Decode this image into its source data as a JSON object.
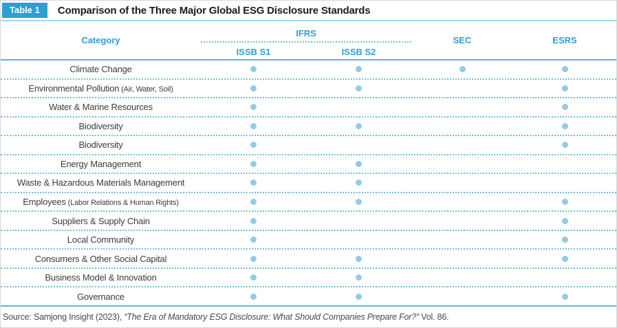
{
  "header": {
    "badge": "Table 1",
    "title": "Comparison of the Three Major Global ESG Disclosure Standards"
  },
  "table": {
    "category_header": "Category",
    "group_header": "IFRS",
    "columns": [
      "ISSB S1",
      "ISSB S2",
      "SEC",
      "ESRS"
    ],
    "rows": [
      {
        "label": "Climate Change",
        "note": "",
        "marks": [
          1,
          1,
          1,
          1
        ]
      },
      {
        "label": "Environmental Pollution",
        "note": "(Air, Water, Soil)",
        "marks": [
          1,
          1,
          0,
          1
        ]
      },
      {
        "label": "Water & Marine Resources",
        "note": "",
        "marks": [
          1,
          0,
          0,
          1
        ]
      },
      {
        "label": "Biodiversity",
        "note": "",
        "marks": [
          1,
          1,
          0,
          1
        ]
      },
      {
        "label": "Biodiversity",
        "note": "",
        "marks": [
          1,
          0,
          0,
          1
        ]
      },
      {
        "label": "Energy Management",
        "note": "",
        "marks": [
          1,
          1,
          0,
          0
        ]
      },
      {
        "label": "Waste & Hazardous Materials Management",
        "note": "",
        "marks": [
          1,
          1,
          0,
          0
        ]
      },
      {
        "label": "Employees",
        "note": "(Labor Relations & Human Rights)",
        "marks": [
          1,
          1,
          0,
          1
        ]
      },
      {
        "label": "Suppliers & Supply Chain",
        "note": "",
        "marks": [
          1,
          0,
          0,
          1
        ]
      },
      {
        "label": "Local Community",
        "note": "",
        "marks": [
          1,
          0,
          0,
          1
        ]
      },
      {
        "label": "Consumers & Other Social Capital",
        "note": "",
        "marks": [
          1,
          1,
          0,
          1
        ]
      },
      {
        "label": "Business Model & Innovation",
        "note": "",
        "marks": [
          1,
          1,
          0,
          0
        ]
      },
      {
        "label": "Governance",
        "note": "",
        "marks": [
          1,
          1,
          0,
          1
        ]
      }
    ]
  },
  "source": {
    "prefix": "Source: Samjong Insight (2023), ",
    "italic": "“The Era of Mandatory ESG Disclosure: What Should Companies Prepare For?”",
    "suffix": " Vol. 86."
  },
  "colors": {
    "accent_blue": "#2ba0d2",
    "header_text_blue": "#2b9fd9",
    "dot_blue": "#92cbe7",
    "rule_blue": "#5fb3de",
    "light_rule_blue": "#a3d7ef",
    "dotted_line_blue": "#6fbde2",
    "title_text": "#1c1c1c",
    "row_text": "#3c3c3c",
    "source_text": "#4a4a4a",
    "border_gray": "#d9d9d9"
  }
}
